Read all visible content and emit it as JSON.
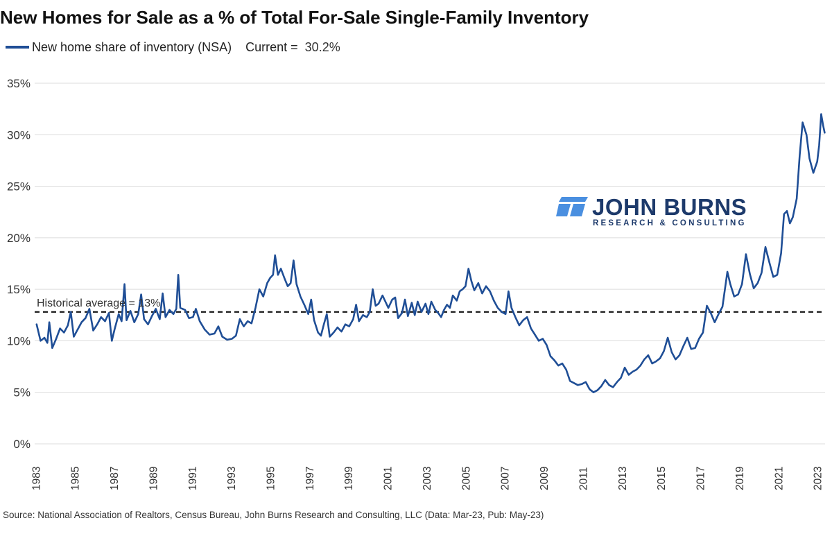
{
  "chart_data": {
    "type": "line",
    "title": "New Homes for Sale as a % of Total For-Sale Single-Family Inventory",
    "xlabel": "",
    "ylabel": "",
    "legend": {
      "series_label": "New home share of inventory (NSA)",
      "current_label": "Current =",
      "current_value": "30.2%"
    },
    "yticks": [
      "35%",
      "30%",
      "25%",
      "20%",
      "15%",
      "10%",
      "5%",
      "0%"
    ],
    "ytick_values": [
      35,
      30,
      25,
      20,
      15,
      10,
      5,
      0
    ],
    "xticks": [
      "1983",
      "1985",
      "1987",
      "1989",
      "1991",
      "1993",
      "1995",
      "1997",
      "1999",
      "2001",
      "2003",
      "2005",
      "2007",
      "2009",
      "2011",
      "2013",
      "2015",
      "2017",
      "2019",
      "2021",
      "2023"
    ],
    "xtick_values": [
      1983,
      1985,
      1987,
      1989,
      1991,
      1993,
      1995,
      1997,
      1999,
      2001,
      2003,
      2005,
      2007,
      2009,
      2011,
      2013,
      2015,
      2017,
      2019,
      2021,
      2023
    ],
    "xlim": [
      1982.9,
      2023.35
    ],
    "ylim": [
      0,
      35
    ],
    "grid": "horizontal",
    "legend_position": "top-left",
    "reference_line": {
      "value": 12.8,
      "label": "Historical average = 13%"
    },
    "series": [
      {
        "name": "New home share of inventory (NSA)",
        "color": "#1f4e96",
        "points": [
          [
            1983.0,
            11.6
          ],
          [
            1983.2,
            10.0
          ],
          [
            1983.4,
            10.3
          ],
          [
            1983.55,
            9.8
          ],
          [
            1983.65,
            11.8
          ],
          [
            1983.8,
            9.3
          ],
          [
            1984.0,
            10.2
          ],
          [
            1984.2,
            11.2
          ],
          [
            1984.4,
            10.8
          ],
          [
            1984.6,
            11.5
          ],
          [
            1984.75,
            12.8
          ],
          [
            1984.9,
            10.4
          ],
          [
            1985.1,
            11.1
          ],
          [
            1985.3,
            11.8
          ],
          [
            1985.5,
            12.2
          ],
          [
            1985.7,
            13.1
          ],
          [
            1985.9,
            11.0
          ],
          [
            1986.1,
            11.6
          ],
          [
            1986.3,
            12.3
          ],
          [
            1986.5,
            11.9
          ],
          [
            1986.7,
            12.7
          ],
          [
            1986.85,
            10.0
          ],
          [
            1987.0,
            11.2
          ],
          [
            1987.2,
            12.6
          ],
          [
            1987.35,
            11.9
          ],
          [
            1987.5,
            15.5
          ],
          [
            1987.6,
            12.0
          ],
          [
            1987.8,
            12.9
          ],
          [
            1988.0,
            11.8
          ],
          [
            1988.2,
            12.6
          ],
          [
            1988.35,
            14.5
          ],
          [
            1988.5,
            12.1
          ],
          [
            1988.7,
            11.6
          ],
          [
            1988.9,
            12.4
          ],
          [
            1989.1,
            13.1
          ],
          [
            1989.3,
            12.1
          ],
          [
            1989.45,
            14.6
          ],
          [
            1989.6,
            12.3
          ],
          [
            1989.8,
            13.0
          ],
          [
            1990.0,
            12.6
          ],
          [
            1990.15,
            13.1
          ],
          [
            1990.25,
            16.4
          ],
          [
            1990.35,
            13.2
          ],
          [
            1990.6,
            13.0
          ],
          [
            1990.8,
            12.2
          ],
          [
            1991.0,
            12.3
          ],
          [
            1991.15,
            13.1
          ],
          [
            1991.35,
            11.9
          ],
          [
            1991.6,
            11.1
          ],
          [
            1991.85,
            10.6
          ],
          [
            1992.1,
            10.7
          ],
          [
            1992.3,
            11.4
          ],
          [
            1992.5,
            10.4
          ],
          [
            1992.75,
            10.1
          ],
          [
            1993.0,
            10.2
          ],
          [
            1993.2,
            10.5
          ],
          [
            1993.4,
            12.1
          ],
          [
            1993.6,
            11.4
          ],
          [
            1993.8,
            11.9
          ],
          [
            1994.0,
            11.7
          ],
          [
            1994.2,
            13.2
          ],
          [
            1994.4,
            15.0
          ],
          [
            1994.6,
            14.3
          ],
          [
            1994.8,
            15.6
          ],
          [
            1994.95,
            16.1
          ],
          [
            1995.1,
            16.4
          ],
          [
            1995.2,
            18.3
          ],
          [
            1995.35,
            16.4
          ],
          [
            1995.5,
            17.0
          ],
          [
            1995.7,
            16.0
          ],
          [
            1995.85,
            15.3
          ],
          [
            1996.0,
            15.6
          ],
          [
            1996.15,
            17.8
          ],
          [
            1996.3,
            15.5
          ],
          [
            1996.5,
            14.3
          ],
          [
            1996.7,
            13.5
          ],
          [
            1996.9,
            12.6
          ],
          [
            1997.05,
            14.0
          ],
          [
            1997.2,
            12.0
          ],
          [
            1997.4,
            10.8
          ],
          [
            1997.55,
            10.5
          ],
          [
            1997.7,
            11.6
          ],
          [
            1997.85,
            12.6
          ],
          [
            1998.0,
            10.4
          ],
          [
            1998.2,
            10.8
          ],
          [
            1998.4,
            11.3
          ],
          [
            1998.6,
            10.9
          ],
          [
            1998.8,
            11.6
          ],
          [
            1999.0,
            11.4
          ],
          [
            1999.2,
            12.1
          ],
          [
            1999.35,
            13.5
          ],
          [
            1999.5,
            11.9
          ],
          [
            1999.7,
            12.5
          ],
          [
            1999.9,
            12.3
          ],
          [
            2000.05,
            12.8
          ],
          [
            2000.2,
            15.0
          ],
          [
            2000.35,
            13.4
          ],
          [
            2000.5,
            13.6
          ],
          [
            2000.7,
            14.4
          ],
          [
            2000.85,
            13.8
          ],
          [
            2001.0,
            13.2
          ],
          [
            2001.2,
            14.0
          ],
          [
            2001.35,
            14.2
          ],
          [
            2001.5,
            12.2
          ],
          [
            2001.7,
            12.7
          ],
          [
            2001.85,
            14.0
          ],
          [
            2002.0,
            12.4
          ],
          [
            2002.2,
            13.7
          ],
          [
            2002.35,
            12.5
          ],
          [
            2002.5,
            13.8
          ],
          [
            2002.7,
            12.8
          ],
          [
            2002.9,
            13.6
          ],
          [
            2003.05,
            12.6
          ],
          [
            2003.2,
            13.8
          ],
          [
            2003.4,
            13.0
          ],
          [
            2003.55,
            12.7
          ],
          [
            2003.7,
            12.3
          ],
          [
            2003.85,
            13.0
          ],
          [
            2004.0,
            13.5
          ],
          [
            2004.15,
            13.2
          ],
          [
            2004.3,
            14.4
          ],
          [
            2004.5,
            13.9
          ],
          [
            2004.65,
            14.8
          ],
          [
            2004.8,
            15.0
          ],
          [
            2004.95,
            15.3
          ],
          [
            2005.1,
            17.0
          ],
          [
            2005.25,
            15.8
          ],
          [
            2005.4,
            14.9
          ],
          [
            2005.6,
            15.6
          ],
          [
            2005.8,
            14.6
          ],
          [
            2006.0,
            15.3
          ],
          [
            2006.2,
            14.8
          ],
          [
            2006.4,
            13.9
          ],
          [
            2006.6,
            13.2
          ],
          [
            2006.8,
            12.8
          ],
          [
            2007.0,
            12.6
          ],
          [
            2007.15,
            14.8
          ],
          [
            2007.3,
            13.2
          ],
          [
            2007.5,
            12.3
          ],
          [
            2007.7,
            11.5
          ],
          [
            2007.9,
            12.0
          ],
          [
            2008.1,
            12.3
          ],
          [
            2008.3,
            11.2
          ],
          [
            2008.5,
            10.6
          ],
          [
            2008.7,
            10.0
          ],
          [
            2008.9,
            10.2
          ],
          [
            2009.1,
            9.6
          ],
          [
            2009.3,
            8.5
          ],
          [
            2009.5,
            8.1
          ],
          [
            2009.7,
            7.6
          ],
          [
            2009.9,
            7.8
          ],
          [
            2010.1,
            7.2
          ],
          [
            2010.3,
            6.1
          ],
          [
            2010.5,
            5.9
          ],
          [
            2010.7,
            5.7
          ],
          [
            2010.9,
            5.8
          ],
          [
            2011.1,
            6.0
          ],
          [
            2011.3,
            5.3
          ],
          [
            2011.5,
            5.0
          ],
          [
            2011.7,
            5.2
          ],
          [
            2011.9,
            5.6
          ],
          [
            2012.1,
            6.2
          ],
          [
            2012.3,
            5.7
          ],
          [
            2012.5,
            5.5
          ],
          [
            2012.7,
            6.0
          ],
          [
            2012.9,
            6.4
          ],
          [
            2013.1,
            7.4
          ],
          [
            2013.3,
            6.7
          ],
          [
            2013.5,
            7.0
          ],
          [
            2013.7,
            7.2
          ],
          [
            2013.9,
            7.6
          ],
          [
            2014.1,
            8.2
          ],
          [
            2014.3,
            8.6
          ],
          [
            2014.5,
            7.8
          ],
          [
            2014.7,
            8.0
          ],
          [
            2014.9,
            8.3
          ],
          [
            2015.1,
            9.0
          ],
          [
            2015.3,
            10.3
          ],
          [
            2015.5,
            8.9
          ],
          [
            2015.7,
            8.2
          ],
          [
            2015.9,
            8.6
          ],
          [
            2016.1,
            9.5
          ],
          [
            2016.3,
            10.3
          ],
          [
            2016.5,
            9.2
          ],
          [
            2016.7,
            9.3
          ],
          [
            2016.9,
            10.2
          ],
          [
            2017.1,
            10.8
          ],
          [
            2017.3,
            13.4
          ],
          [
            2017.5,
            12.7
          ],
          [
            2017.7,
            11.8
          ],
          [
            2017.9,
            12.6
          ],
          [
            2018.1,
            13.3
          ],
          [
            2018.35,
            16.7
          ],
          [
            2018.5,
            15.5
          ],
          [
            2018.7,
            14.3
          ],
          [
            2018.9,
            14.5
          ],
          [
            2019.1,
            15.5
          ],
          [
            2019.3,
            18.4
          ],
          [
            2019.5,
            16.5
          ],
          [
            2019.7,
            15.1
          ],
          [
            2019.9,
            15.6
          ],
          [
            2020.1,
            16.6
          ],
          [
            2020.3,
            19.1
          ],
          [
            2020.5,
            17.6
          ],
          [
            2020.7,
            16.2
          ],
          [
            2020.9,
            16.4
          ],
          [
            2021.1,
            18.5
          ],
          [
            2021.25,
            22.3
          ],
          [
            2021.4,
            22.6
          ],
          [
            2021.55,
            21.4
          ],
          [
            2021.7,
            22.0
          ],
          [
            2021.9,
            23.8
          ],
          [
            2022.05,
            28.0
          ],
          [
            2022.2,
            31.2
          ],
          [
            2022.4,
            30.0
          ],
          [
            2022.55,
            27.7
          ],
          [
            2022.75,
            26.3
          ],
          [
            2022.95,
            27.4
          ],
          [
            2023.05,
            29.0
          ],
          [
            2023.15,
            32.0
          ],
          [
            2023.25,
            30.9
          ],
          [
            2023.33,
            30.2
          ]
        ]
      }
    ]
  },
  "source": "Source: National Association of Realtors, Census Bureau, John Burns Research and Consulting, LLC  (Data: Mar-23, Pub: May-23)",
  "logo": {
    "name": "JOHN BURNS",
    "subtitle": "RESEARCH & CONSULTING",
    "color": "#1d3a6b",
    "accent": "#4a8fe0"
  }
}
